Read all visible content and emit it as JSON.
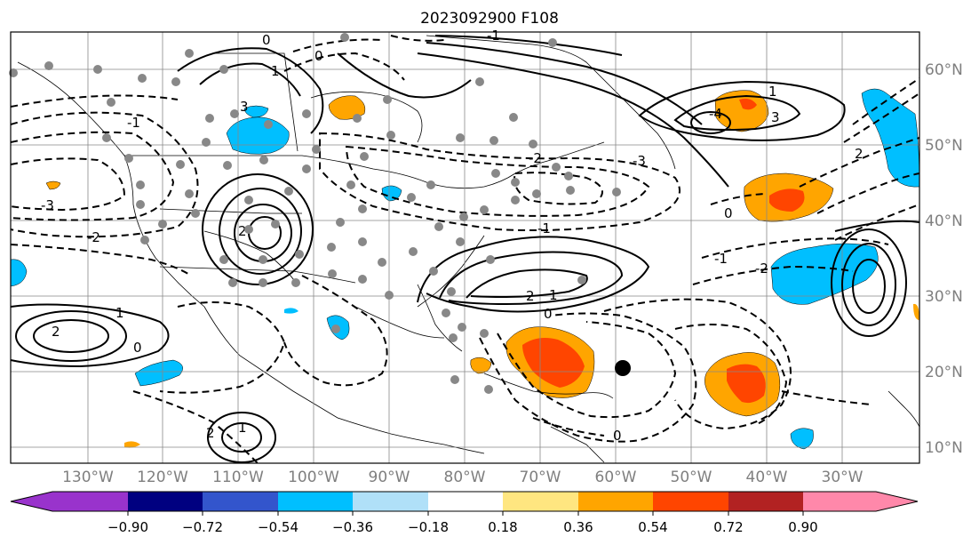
{
  "title": "2023092900 F108",
  "map": {
    "lon_ticks": [
      "130°W",
      "120°W",
      "110°W",
      "100°W",
      "90°W",
      "80°W",
      "70°W",
      "60°W",
      "50°W",
      "40°W",
      "30°W"
    ],
    "lat_ticks": [
      "60°N",
      "50°N",
      "40°N",
      "30°N",
      "20°N",
      "10°N"
    ],
    "contour_labels": [
      "0",
      "1",
      "2",
      "3",
      "-1",
      "-2",
      "-3",
      "2",
      "1",
      "0",
      "2",
      "1",
      "-2",
      "-1",
      "0",
      "2",
      "1",
      "-1",
      "0",
      "3",
      "1",
      "-4",
      "-3",
      "0",
      "-2",
      "2",
      "-1",
      "0"
    ]
  },
  "colorbar": {
    "ticks": [
      "−0.90",
      "−0.72",
      "−0.54",
      "−0.36",
      "−0.18",
      "0.18",
      "0.36",
      "0.54",
      "0.72",
      "0.90"
    ],
    "colors": [
      "#9933cc",
      "#000080",
      "#3355cc",
      "#00bfff",
      "#b0e0f8",
      "#ffffff",
      "#ffe680",
      "#ffa500",
      "#ff4500",
      "#b22222",
      "#ff88aa"
    ]
  },
  "colors": {
    "positive_fill": "#ffa500",
    "strong_positive": "#ff4500",
    "negative_fill": "#00bfff",
    "contour": "#000000",
    "grid": "#888888",
    "station_dot": "#888888"
  }
}
